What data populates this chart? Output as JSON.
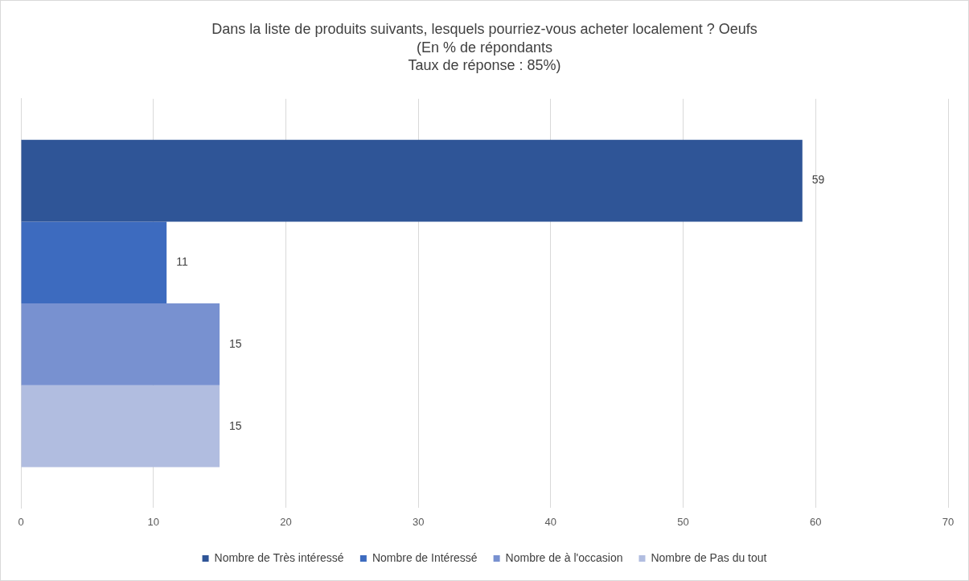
{
  "chart_data": {
    "type": "bar",
    "orientation": "horizontal",
    "title": "Dans la liste de produits suivants, lesquels pourriez-vous acheter localement ? Oeufs",
    "subtitle": "(En % de répondants\nTaux de réponse : 85%)",
    "categories": [
      null
    ],
    "series": [
      {
        "name": "Nombre de Très intéressé",
        "color": "#2f5597",
        "values": [
          59
        ]
      },
      {
        "name": "Nombre de Intéressé",
        "color": "#3d6bbf",
        "values": [
          11
        ]
      },
      {
        "name": "Nombre de à l'occasion",
        "color": "#7891d0",
        "values": [
          15
        ]
      },
      {
        "name": "Nombre de Pas du tout",
        "color": "#b1bde0",
        "values": [
          15
        ]
      }
    ],
    "xlim": [
      0,
      70
    ],
    "xticks": [
      0,
      10,
      20,
      30,
      40,
      50,
      60,
      70
    ],
    "grid": "x",
    "legend": "bottom",
    "data_labels": true,
    "tick_labels": "x"
  }
}
